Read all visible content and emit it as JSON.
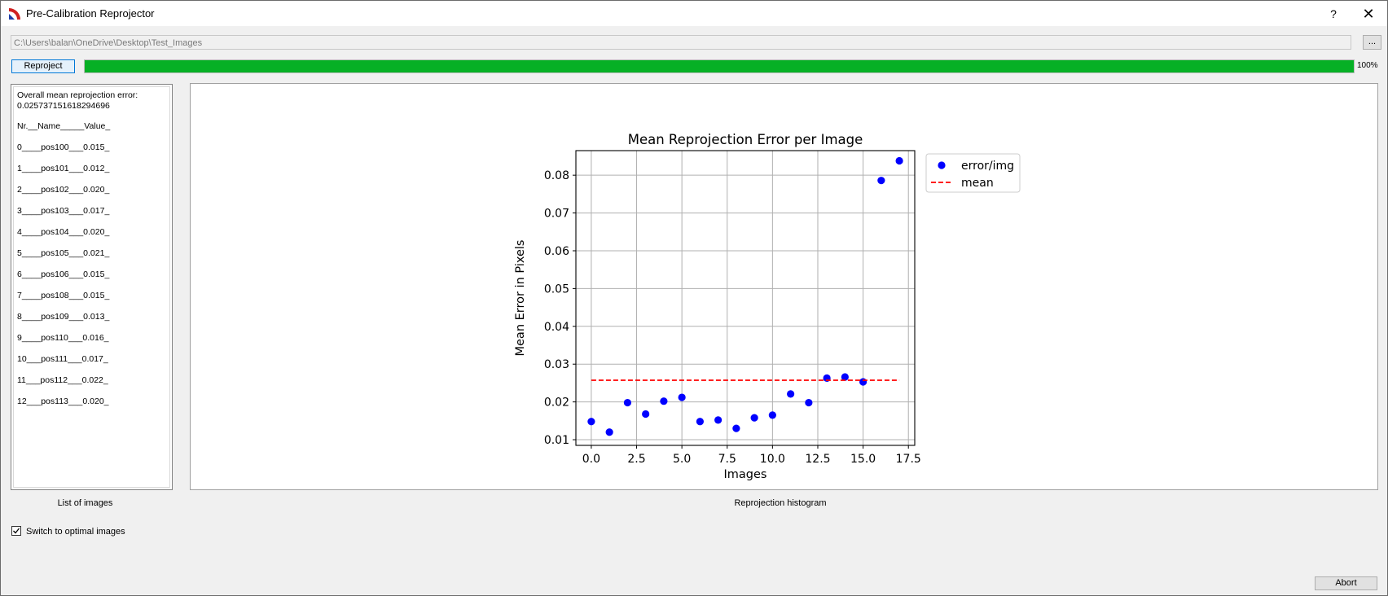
{
  "window": {
    "title": "Pre-Calibration Reprojector",
    "help_label": "?",
    "close_label": "✕"
  },
  "path": {
    "value": "C:\\Users\\balan\\OneDrive\\Desktop\\Test_Images",
    "browse_label": "..."
  },
  "controls": {
    "reproject_label": "Reproject",
    "progress": 1.0,
    "progress_text": "100%",
    "progress_color": "#06b025"
  },
  "list": {
    "header_line1": "Overall mean reprojection error:",
    "header_line2": "0.025737151618294696",
    "columns": "Nr.__Name_____Value_",
    "items": [
      "0____pos100___0.015_",
      "1____pos101___0.012_",
      "2____pos102___0.020_",
      "3____pos103___0.017_",
      "4____pos104___0.020_",
      "5____pos105___0.021_",
      "6____pos106___0.015_",
      "7____pos108___0.015_",
      "8____pos109___0.013_",
      "9____pos110___0.016_",
      "10___pos111___0.017_",
      "11___pos112___0.022_",
      "12___pos113___0.020_"
    ],
    "caption": "List of images"
  },
  "plot": {
    "caption": "Reprojection histogram"
  },
  "options": {
    "optimal_images_label": "Switch to optimal images",
    "optimal_images_checked": true
  },
  "footer": {
    "abort_label": "Abort"
  },
  "chart_data": {
    "type": "scatter",
    "title": "Mean Reprojection Error per Image",
    "xlabel": "Images",
    "ylabel": "Mean Error in Pixels",
    "xlim": [
      -0.85,
      17.85
    ],
    "ylim": [
      0.0085,
      0.0865
    ],
    "xticks": [
      0.0,
      2.5,
      5.0,
      7.5,
      10.0,
      12.5,
      15.0,
      17.5
    ],
    "xtick_labels": [
      "0.0",
      "2.5",
      "5.0",
      "7.5",
      "10.0",
      "12.5",
      "15.0",
      "17.5"
    ],
    "yticks": [
      0.01,
      0.02,
      0.03,
      0.04,
      0.05,
      0.06,
      0.07,
      0.08
    ],
    "ytick_labels": [
      "0.01",
      "0.02",
      "0.03",
      "0.04",
      "0.05",
      "0.06",
      "0.07",
      "0.08"
    ],
    "grid": true,
    "legend_position": "outside-right-top",
    "series": [
      {
        "name": "error/img",
        "kind": "scatter",
        "color": "#0000ff",
        "x": [
          0,
          1,
          2,
          3,
          4,
          5,
          6,
          7,
          8,
          9,
          10,
          11,
          12,
          13,
          14,
          15,
          16,
          17
        ],
        "y": [
          0.0148,
          0.012,
          0.0198,
          0.0168,
          0.0202,
          0.0212,
          0.0148,
          0.0152,
          0.013,
          0.0158,
          0.0165,
          0.0221,
          0.0198,
          0.0263,
          0.0266,
          0.0253,
          0.0786,
          0.0838
        ]
      },
      {
        "name": "mean",
        "kind": "dashed-line",
        "color": "#ff0000",
        "x": [
          0,
          17
        ],
        "y": [
          0.025737,
          0.025737
        ]
      }
    ]
  }
}
